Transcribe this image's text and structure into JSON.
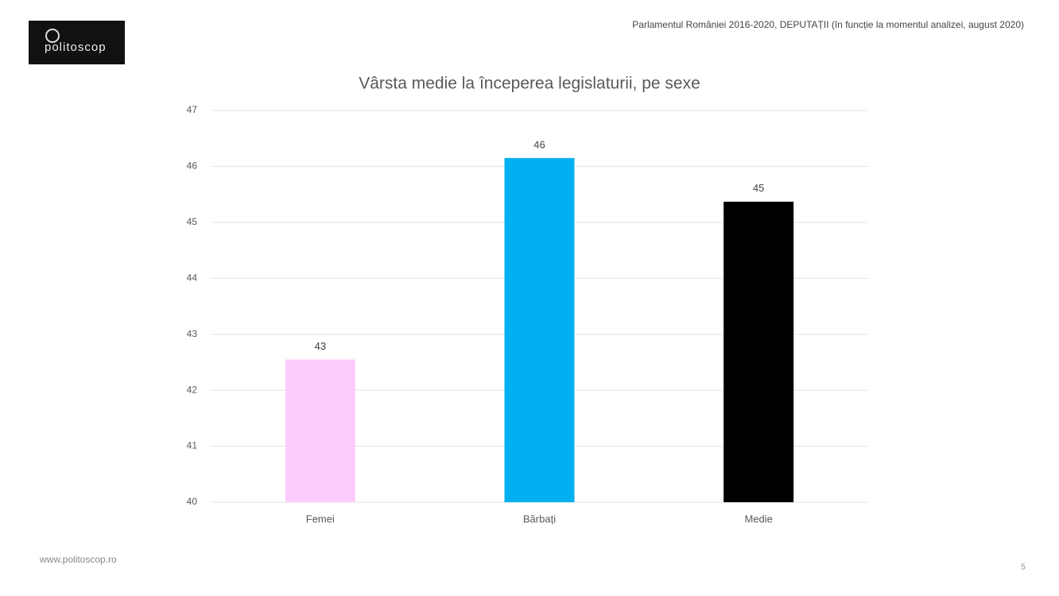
{
  "logo": "politoscop",
  "header_note": "Parlamentul României 2016-2020, DEPUTAȚII (în funcție la momentul analizei, august 2020)",
  "footer": "www.politoscop.ro",
  "page_number": "5",
  "chart_data": {
    "type": "bar",
    "title": "Vârsta medie la începerea legislaturii, pe sexe",
    "categories": [
      "Femei",
      "Bărbați",
      "Medie"
    ],
    "values": [
      42.55,
      46.15,
      45.37
    ],
    "value_labels": [
      "43",
      "46",
      "45"
    ],
    "colors": [
      "#fccdfc",
      "#00b0f0",
      "#000000"
    ],
    "ylim": [
      40,
      47
    ],
    "yticks": [
      40,
      41,
      42,
      43,
      44,
      45,
      46,
      47
    ],
    "grid": true
  }
}
